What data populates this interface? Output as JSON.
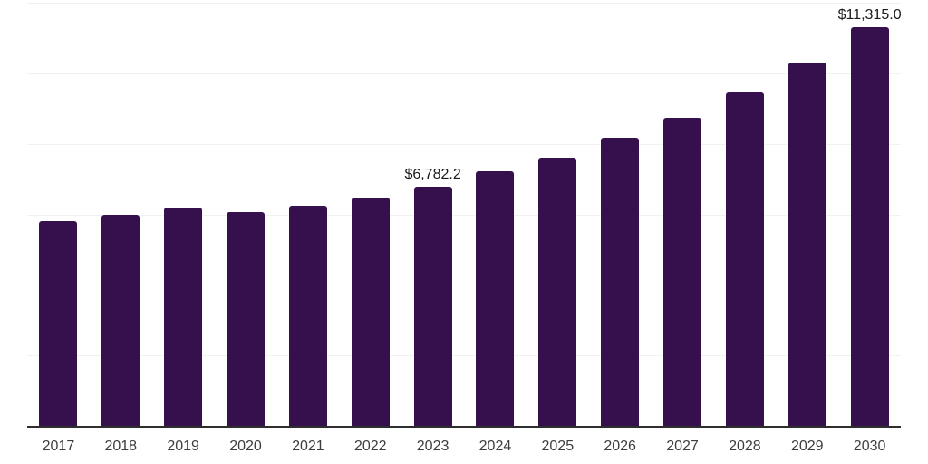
{
  "chart_data": {
    "type": "bar",
    "title": "",
    "xlabel": "",
    "ylabel": "",
    "categories": [
      "2017",
      "2018",
      "2019",
      "2020",
      "2021",
      "2022",
      "2023",
      "2024",
      "2025",
      "2026",
      "2027",
      "2028",
      "2029",
      "2030"
    ],
    "values": [
      5820,
      6000,
      6190,
      6075,
      6255,
      6470,
      6782.2,
      7210,
      7610,
      8165,
      8730,
      9445,
      10300,
      11315
    ],
    "value_labels": {
      "2023": "$6,782.2",
      "2030": "$11,315.0"
    },
    "ylim": [
      0,
      12000
    ],
    "grid_step": 2000,
    "grid": "horizontal-light",
    "legend_position": "none",
    "colors": {
      "bar": "#35104c",
      "axis_line": "#2e2e2e",
      "gridline": "#f1f1f3",
      "tick_label": "#3d3d3d",
      "value_label": "#1a1a1a",
      "background": "#ffffff"
    }
  }
}
